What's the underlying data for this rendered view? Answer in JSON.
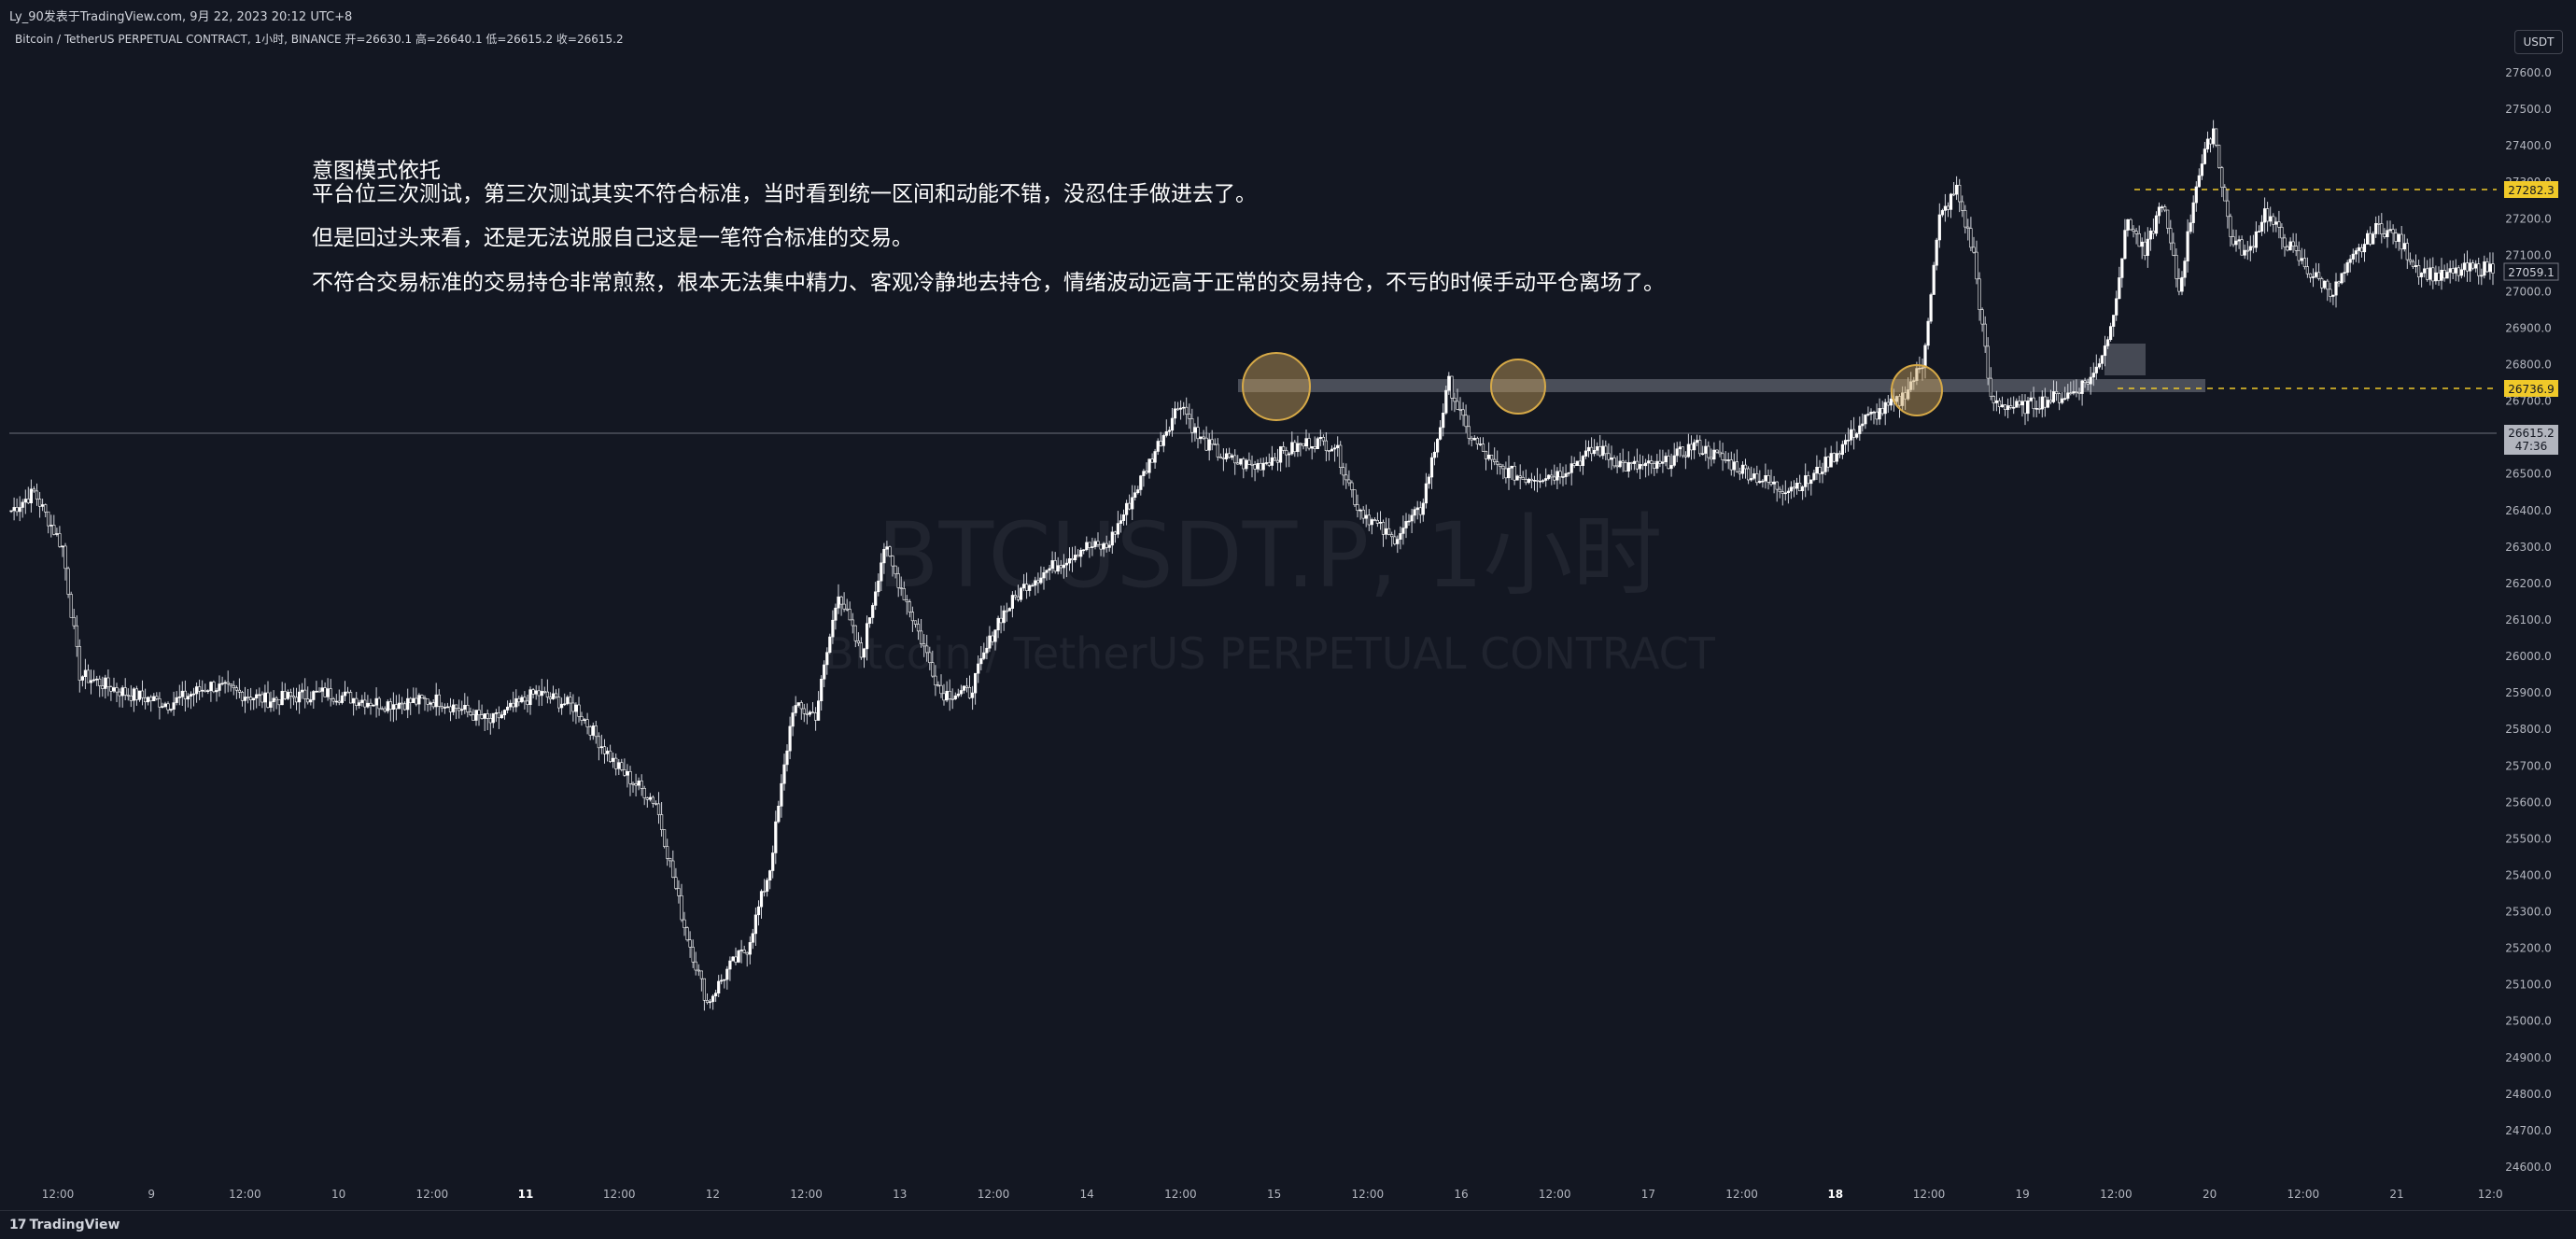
{
  "header": {
    "publisher": "Ly_90发表于TradingView.com,  9月 22, 2023 20:12 UTC+8"
  },
  "legend": {
    "symbol_line": "Bitcoin / TetherUS PERPETUAL CONTRACT, 1小时, BINANCE  开=26630.1  高=26640.1  低=26615.2  收=26615.2"
  },
  "currency_button": "USDT",
  "watermark": {
    "symbol": "BTCUSDT.P, 1小时",
    "description": "Bitcoin / TetherUS PERPETUAL CONTRACT"
  },
  "annotations": {
    "title": "意图模式依托",
    "line1": "平台位三次测试，第三次测试其实不符合标准，当时看到统一区间和动能不错，没忍住手做进去了。",
    "line2": "但是回过头来看，还是无法说服自己这是一笔符合标准的交易。",
    "line3": "不符合交易标准的交易持仓非常煎熬，根本无法集中精力、客观冷静地去持仓，情绪波动远高于正常的交易持仓，不亏的时候手动平仓离场了。"
  },
  "price_labels": {
    "upper_level": "27282.3",
    "lower_level": "26736.9",
    "last_price": "26615.2",
    "countdown": "47:36",
    "recent": "27059.1"
  },
  "footer": {
    "brand": "TradingView",
    "logo_mark": "17"
  },
  "colors": {
    "background": "#131722",
    "candle": "#ffffff",
    "level_line": "#f0c929",
    "highlight_circle": "#c9a15a",
    "zone": "#787b86"
  },
  "chart_data": {
    "type": "candlestick",
    "y_axis_ticks": [
      "27600.0",
      "27500.0",
      "27400.0",
      "27300.0",
      "27200.0",
      "27100.0",
      "27000.0",
      "26900.0",
      "26800.0",
      "26700.0",
      "26600.0",
      "26500.0",
      "26400.0",
      "26300.0",
      "26200.0",
      "26100.0",
      "26000.0",
      "25900.0",
      "25800.0",
      "25700.0",
      "25600.0",
      "25500.0",
      "25400.0",
      "25300.0",
      "25200.0",
      "25100.0",
      "25000.0",
      "24900.0",
      "24800.0",
      "24700.0",
      "24600.0"
    ],
    "x_axis_ticks": [
      "12:00",
      "9",
      "12:00",
      "10",
      "12:00",
      "11",
      "12:00",
      "12",
      "12:00",
      "13",
      "12:00",
      "14",
      "12:00",
      "15",
      "12:00",
      "16",
      "12:00",
      "17",
      "12:00",
      "18",
      "12:00",
      "19",
      "12:00",
      "20",
      "12:00",
      "21",
      "12:0"
    ],
    "ylim": [
      24600,
      27600
    ],
    "horizontal_levels": [
      27282.3,
      26736.9
    ],
    "last_price": 26615.2,
    "tested_resistance_zone": [
      26720,
      26760
    ],
    "close_path": [
      [
        0,
        26400
      ],
      [
        8,
        26450
      ],
      [
        18,
        26300
      ],
      [
        24,
        25950
      ],
      [
        40,
        25900
      ],
      [
        55,
        25870
      ],
      [
        70,
        25920
      ],
      [
        90,
        25880
      ],
      [
        110,
        25900
      ],
      [
        130,
        25870
      ],
      [
        150,
        25880
      ],
      [
        168,
        25820
      ],
      [
        184,
        25900
      ],
      [
        198,
        25860
      ],
      [
        212,
        25700
      ],
      [
        226,
        25600
      ],
      [
        236,
        25260
      ],
      [
        244,
        25050
      ],
      [
        252,
        25150
      ],
      [
        258,
        25200
      ],
      [
        266,
        25420
      ],
      [
        274,
        25860
      ],
      [
        282,
        25840
      ],
      [
        290,
        26180
      ],
      [
        298,
        26000
      ],
      [
        306,
        26300
      ],
      [
        314,
        26150
      ],
      [
        326,
        25900
      ],
      [
        336,
        25900
      ],
      [
        346,
        26100
      ],
      [
        356,
        26200
      ],
      [
        366,
        26250
      ],
      [
        376,
        26300
      ],
      [
        384,
        26300
      ],
      [
        392,
        26420
      ],
      [
        402,
        26580
      ],
      [
        410,
        26700
      ],
      [
        416,
        26600
      ],
      [
        426,
        26540
      ],
      [
        436,
        26520
      ],
      [
        446,
        26560
      ],
      [
        456,
        26590
      ],
      [
        464,
        26580
      ],
      [
        472,
        26410
      ],
      [
        484,
        26320
      ],
      [
        494,
        26400
      ],
      [
        500,
        26600
      ],
      [
        504,
        26750
      ],
      [
        510,
        26620
      ],
      [
        520,
        26520
      ],
      [
        530,
        26490
      ],
      [
        542,
        26500
      ],
      [
        556,
        26570
      ],
      [
        566,
        26520
      ],
      [
        578,
        26520
      ],
      [
        590,
        26580
      ],
      [
        600,
        26540
      ],
      [
        610,
        26500
      ],
      [
        620,
        26460
      ],
      [
        630,
        26480
      ],
      [
        640,
        26560
      ],
      [
        650,
        26650
      ],
      [
        662,
        26700
      ],
      [
        670,
        26800
      ],
      [
        676,
        27200
      ],
      [
        682,
        27280
      ],
      [
        688,
        27100
      ],
      [
        694,
        26700
      ],
      [
        704,
        26680
      ],
      [
        712,
        26700
      ],
      [
        722,
        26720
      ],
      [
        730,
        26770
      ],
      [
        736,
        26900
      ],
      [
        742,
        27200
      ],
      [
        748,
        27100
      ],
      [
        754,
        27250
      ],
      [
        760,
        27000
      ],
      [
        766,
        27300
      ],
      [
        772,
        27450
      ],
      [
        778,
        27150
      ],
      [
        784,
        27100
      ],
      [
        790,
        27220
      ],
      [
        796,
        27150
      ],
      [
        806,
        27050
      ],
      [
        814,
        27000
      ],
      [
        822,
        27100
      ],
      [
        830,
        27180
      ],
      [
        836,
        27150
      ],
      [
        844,
        27060
      ],
      [
        852,
        27040
      ],
      [
        860,
        27059
      ]
    ]
  }
}
